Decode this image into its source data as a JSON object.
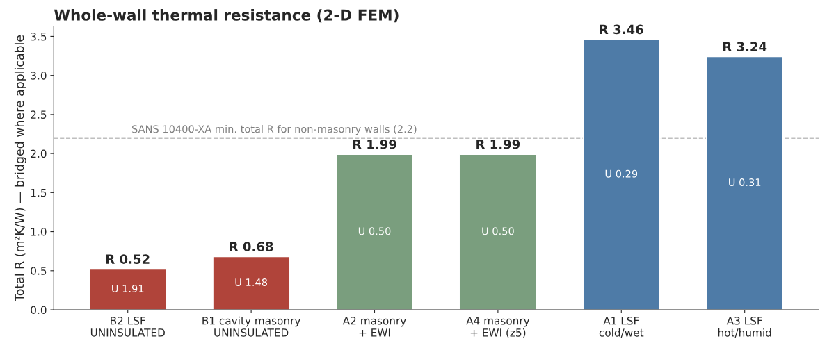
{
  "chart_data": {
    "type": "bar",
    "title": "Whole-wall thermal resistance (2-D FEM)",
    "ylabel": "Total R (m²K/W) — bridged where applicable",
    "categories": [
      "B2 LSF\nUNINSULATED",
      "B1 cavity masonry\nUNINSULATED",
      "A2 masonry\n+ EWI",
      "A4 masonry\n+ EWI (z5)",
      "A1 LSF\ncold/wet",
      "A3 LSF\nhot/humid"
    ],
    "values": [
      0.52,
      0.68,
      1.99,
      1.99,
      3.46,
      3.24
    ],
    "colors": [
      "#b0443a",
      "#b0443a",
      "#7a9e7e",
      "#7a9e7e",
      "#4e7ba7",
      "#4e7ba7"
    ],
    "value_labels": [
      "R 0.52",
      "R 0.68",
      "R 1.99",
      "R 1.99",
      "R 3.46",
      "R 3.24"
    ],
    "annotations": [
      "U 1.91",
      "U 1.48",
      "U 0.50",
      "U 0.50",
      "U 0.29",
      "U 0.31"
    ],
    "ref_lines": [
      {
        "axis": "y",
        "value": 2.2,
        "label": "SANS 10400-XA min. total R for non-masonry walls (2.2)",
        "color": "#808080",
        "line_style": "dashed"
      }
    ],
    "ylim": [
      0,
      3.63
    ],
    "yticks": [
      {
        "value": 0,
        "label": "0.0"
      },
      {
        "value": 0.5,
        "label": "0.5"
      },
      {
        "value": 1,
        "label": "1.0"
      },
      {
        "value": 1.5,
        "label": "1.5"
      },
      {
        "value": 2,
        "label": "2.0"
      },
      {
        "value": 2.5,
        "label": "2.5"
      },
      {
        "value": 3,
        "label": "3.0"
      },
      {
        "value": 3.5,
        "label": "3.5"
      }
    ],
    "grid": false,
    "legend": false
  }
}
